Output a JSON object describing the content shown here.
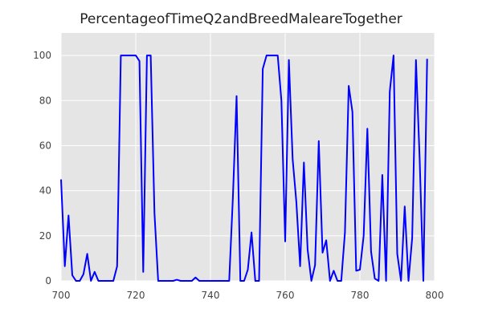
{
  "chart_data": {
    "type": "line",
    "title": "PercentageofTimeQ2andBreedMaleareTogether",
    "xlabel": "",
    "ylabel": "",
    "xlim": [
      700,
      800
    ],
    "ylim": [
      0,
      110
    ],
    "grid": true,
    "x_ticks": [
      700,
      720,
      740,
      760,
      780,
      800
    ],
    "y_ticks": [
      0,
      20,
      40,
      60,
      80,
      100
    ],
    "colors": {
      "line": "#0000ff",
      "plot_background": "#e5e5e5",
      "grid": "#ffffff"
    },
    "series": [
      {
        "x": [
          700,
          701,
          702,
          703,
          704,
          705,
          706,
          707,
          708,
          709,
          710,
          711,
          712,
          713,
          714,
          715,
          716,
          717,
          718,
          719,
          720,
          721,
          722,
          723,
          724,
          725,
          726,
          727,
          728,
          729,
          730,
          731,
          732,
          733,
          734,
          735,
          736,
          737,
          738,
          739,
          740,
          741,
          742,
          743,
          744,
          745,
          746,
          747,
          748,
          749,
          750,
          751,
          752,
          753,
          754,
          755,
          756,
          757,
          758,
          759,
          760,
          761,
          762,
          763,
          764,
          765,
          766,
          767,
          768,
          769,
          770,
          771,
          772,
          773,
          774,
          775,
          776,
          777,
          778,
          779,
          780,
          781,
          782,
          783,
          784,
          785,
          786,
          787,
          788,
          789,
          790,
          791,
          792,
          793,
          794,
          795,
          796,
          797,
          798
        ],
        "values": [
          45,
          6.5,
          29,
          2.5,
          0,
          0,
          3,
          12,
          0,
          4,
          0,
          0,
          0,
          0,
          0,
          6.5,
          100,
          100,
          100,
          100,
          100,
          97.5,
          4,
          100,
          100,
          30,
          0,
          0,
          0,
          0,
          0,
          0.5,
          0,
          0,
          0,
          0,
          1.5,
          0,
          0,
          0,
          0,
          0,
          0,
          0,
          0,
          0,
          37,
          82,
          0,
          0,
          5,
          21.5,
          0,
          0,
          94,
          100,
          100,
          100,
          100,
          80,
          17.5,
          98,
          54,
          35,
          6.5,
          52.5,
          14,
          0,
          7,
          62,
          12.5,
          18,
          0,
          4.5,
          0,
          0,
          21.5,
          86.5,
          75,
          4.5,
          5,
          20,
          67.5,
          13,
          1,
          0,
          47,
          0,
          84,
          100,
          12,
          0,
          33,
          0,
          19,
          98,
          54,
          0,
          98.5
        ]
      }
    ]
  }
}
